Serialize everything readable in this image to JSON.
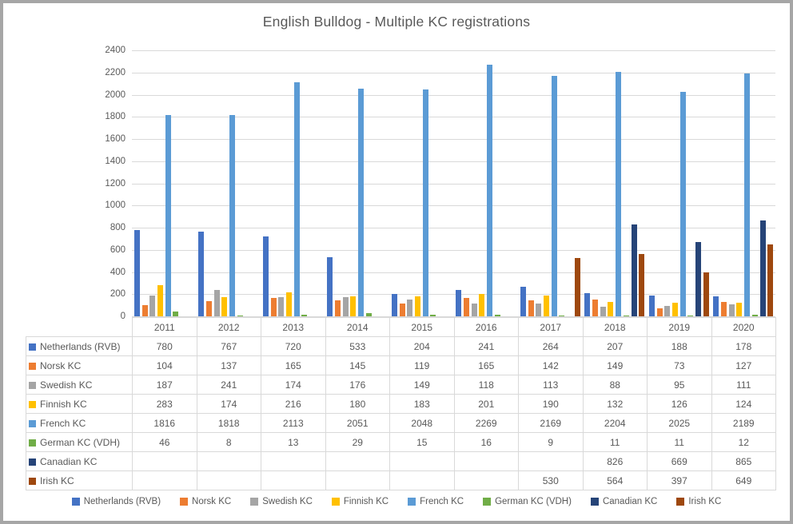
{
  "window": {
    "frame_color": "#a6a6a6",
    "background": "#ffffff",
    "text_color": "#595959",
    "gridline_color": "#d9d9d9"
  },
  "chart_data": {
    "type": "bar",
    "title": "English Bulldog - Multiple KC registrations",
    "categories": [
      "2011",
      "2012",
      "2013",
      "2014",
      "2015",
      "2016",
      "2017",
      "2018",
      "2019",
      "2020"
    ],
    "series": [
      {
        "name": "Netherlands (RVB)",
        "color": "#4472c4",
        "values": [
          780,
          767,
          720,
          533,
          204,
          241,
          264,
          207,
          188,
          178
        ]
      },
      {
        "name": "Norsk KC",
        "color": "#ed7d31",
        "values": [
          104,
          137,
          165,
          145,
          119,
          165,
          142,
          149,
          73,
          127
        ]
      },
      {
        "name": "Swedish KC",
        "color": "#a5a5a5",
        "values": [
          187,
          241,
          174,
          176,
          149,
          118,
          113,
          88,
          95,
          111
        ]
      },
      {
        "name": "Finnish KC",
        "color": "#ffc000",
        "values": [
          283,
          174,
          216,
          180,
          183,
          201,
          190,
          132,
          126,
          124
        ]
      },
      {
        "name": "French KC",
        "color": "#5b9bd5",
        "values": [
          1816,
          1818,
          2113,
          2051,
          2048,
          2269,
          2169,
          2204,
          2025,
          2189
        ]
      },
      {
        "name": "German KC (VDH)",
        "color": "#70ad47",
        "values": [
          46,
          8,
          13,
          29,
          15,
          16,
          9,
          11,
          11,
          12
        ]
      },
      {
        "name": "Canadian KC",
        "color": "#264478",
        "values": [
          null,
          null,
          null,
          null,
          null,
          null,
          null,
          826,
          669,
          865
        ]
      },
      {
        "name": "Irish KC",
        "color": "#9e480e",
        "values": [
          null,
          null,
          null,
          null,
          null,
          null,
          530,
          564,
          397,
          649
        ]
      }
    ],
    "ylim": [
      0,
      2400
    ],
    "yticks": [
      0,
      200,
      400,
      600,
      800,
      1000,
      1200,
      1400,
      1600,
      1800,
      2000,
      2200,
      2400
    ],
    "grid": true,
    "legend_position": "bottom",
    "data_table_shown": true
  }
}
